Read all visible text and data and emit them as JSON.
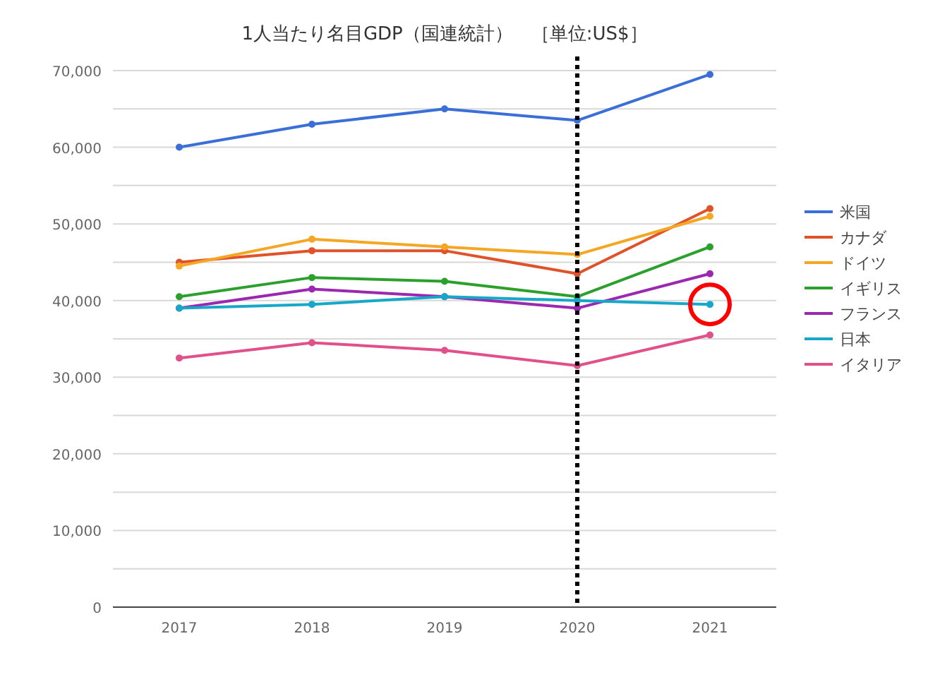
{
  "chart_data": {
    "type": "line",
    "title": "1人当たり名目GDP（国連統計）　［単位:US$］",
    "categories": [
      "2017",
      "2018",
      "2019",
      "2020",
      "2021"
    ],
    "series": [
      {
        "name": "米国",
        "color": "#3a6fd8",
        "values": [
          60000,
          63000,
          65000,
          63500,
          69500
        ]
      },
      {
        "name": "カナダ",
        "color": "#e0522a",
        "values": [
          45000,
          46500,
          46500,
          43500,
          52000
        ]
      },
      {
        "name": "ドイツ",
        "color": "#f5a623",
        "values": [
          44500,
          48000,
          47000,
          46000,
          51000
        ]
      },
      {
        "name": "イギリス",
        "color": "#2ca02c",
        "values": [
          40500,
          43000,
          42500,
          40500,
          47000
        ]
      },
      {
        "name": "フランス",
        "color": "#9c27b0",
        "values": [
          39000,
          41500,
          40500,
          39000,
          43500
        ]
      },
      {
        "name": "日本",
        "color": "#17a8c9",
        "values": [
          39000,
          39500,
          40500,
          40000,
          39500
        ]
      },
      {
        "name": "イタリア",
        "color": "#e0508a",
        "values": [
          32500,
          34500,
          33500,
          31500,
          35500
        ]
      }
    ],
    "ylim": [
      0,
      70000
    ],
    "yticks": [
      0,
      {
        "value": 5000,
        "label": null
      },
      {
        "value": 10000,
        "label": "10,000"
      },
      {
        "value": 15000,
        "label": null
      },
      {
        "value": 20000,
        "label": "20,000"
      },
      {
        "value": 25000,
        "label": null
      },
      {
        "value": 30000,
        "label": "30,000"
      },
      {
        "value": 35000,
        "label": null
      },
      {
        "value": 40000,
        "label": "40,000"
      },
      {
        "value": 45000,
        "label": null
      },
      {
        "value": 50000,
        "label": "50,000"
      },
      {
        "value": 55000,
        "label": null
      },
      {
        "value": 60000,
        "label": "60,000"
      },
      {
        "value": 65000,
        "label": null
      },
      {
        "value": 70000,
        "label": "70,000"
      }
    ],
    "grid": "y",
    "legend": "right",
    "marker": "circle",
    "line_style": "solid",
    "ref_lines": [
      {
        "axis": "x",
        "value": "2020",
        "color": "#000000",
        "line_style": "dotted"
      }
    ]
  }
}
